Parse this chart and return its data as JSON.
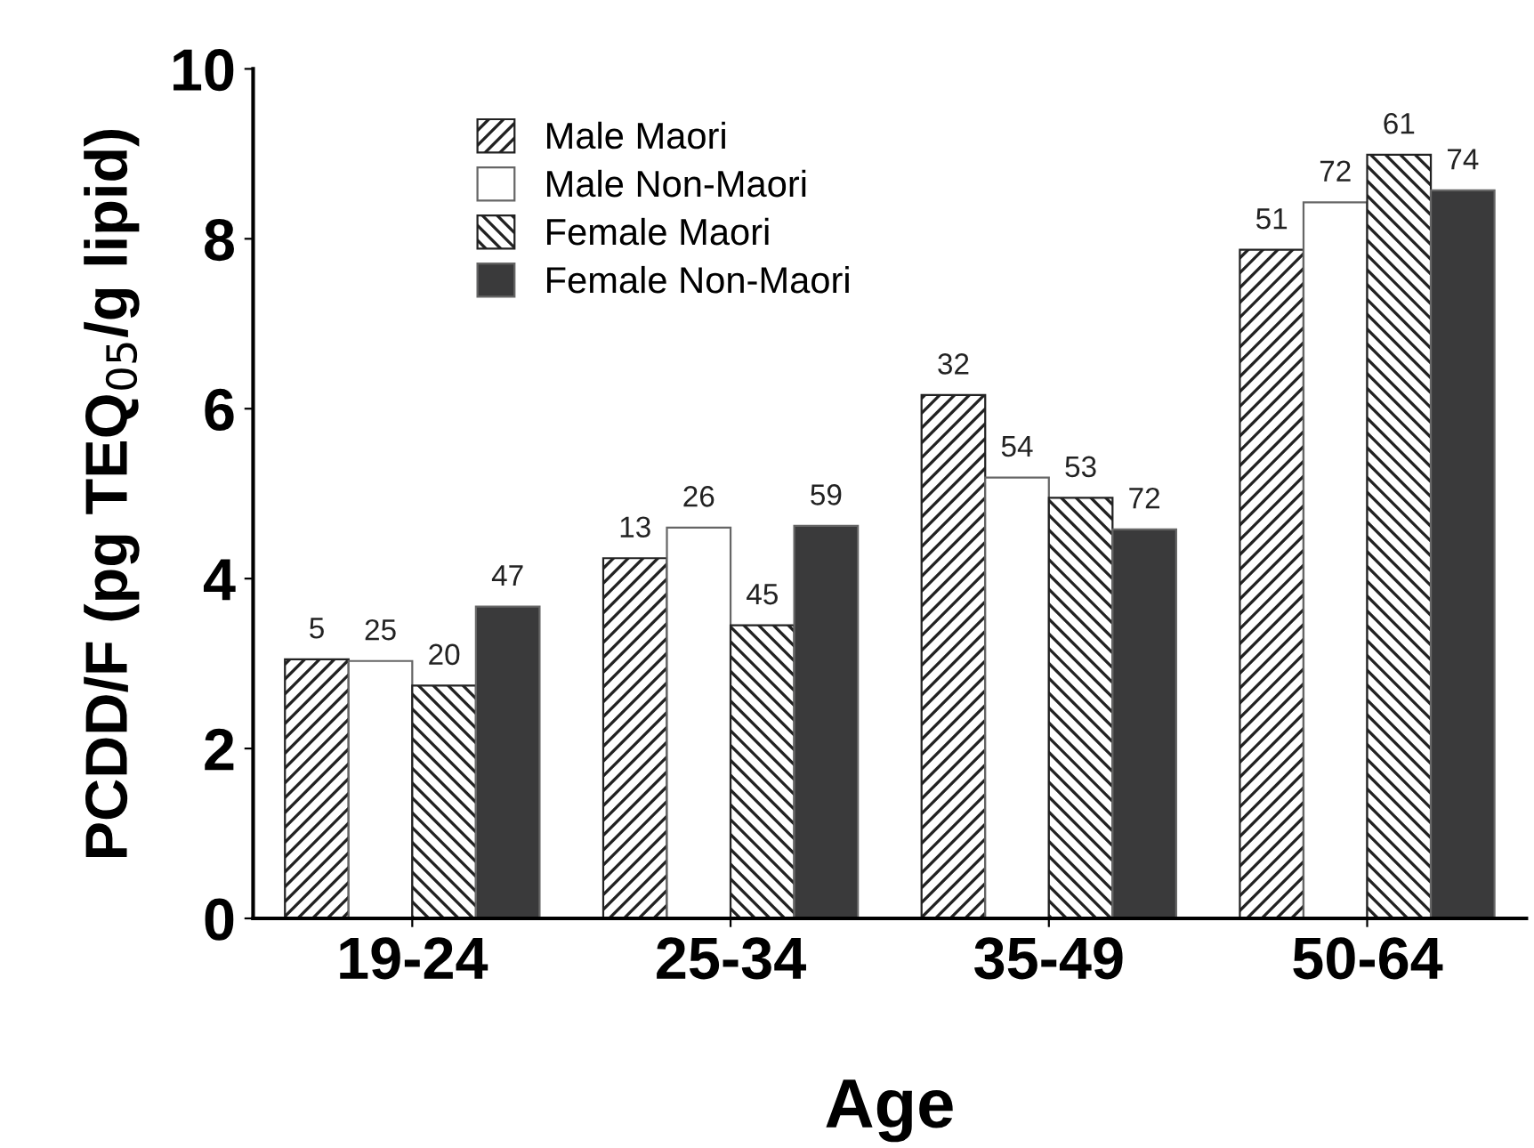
{
  "chart_data": {
    "type": "bar",
    "xlabel": "Age",
    "ylabel": "PCDD/F (pg TEQ$_{05}$/g lipid)",
    "categories": [
      "19-24",
      "25-34",
      "35-49",
      "50-64"
    ],
    "series": [
      {
        "name": "Male Maori",
        "color": "#222222",
        "values": [
          3.05,
          4.24,
          6.16,
          7.87
        ]
      },
      {
        "name": "Male Non-Maori",
        "color": "#ffffff",
        "values": [
          3.03,
          4.6,
          5.19,
          8.43
        ]
      },
      {
        "name": "Female Maori",
        "color": "#222222",
        "values": [
          2.74,
          3.45,
          4.95,
          8.99
        ]
      },
      {
        "name": "Female Non-Maori",
        "color": "#3a3a3b",
        "values": [
          3.67,
          4.62,
          4.58,
          8.57
        ]
      }
    ],
    "annotations": [
      "5",
      "25",
      "20",
      "47",
      "13",
      "26",
      "45",
      "59",
      "32",
      "54",
      "53",
      "72",
      "51",
      "72",
      "61",
      "74"
    ],
    "ylim": [
      0,
      10
    ],
    "yticks": [
      0,
      2,
      4,
      6,
      8,
      10
    ],
    "grid": false,
    "legend": "top left"
  }
}
